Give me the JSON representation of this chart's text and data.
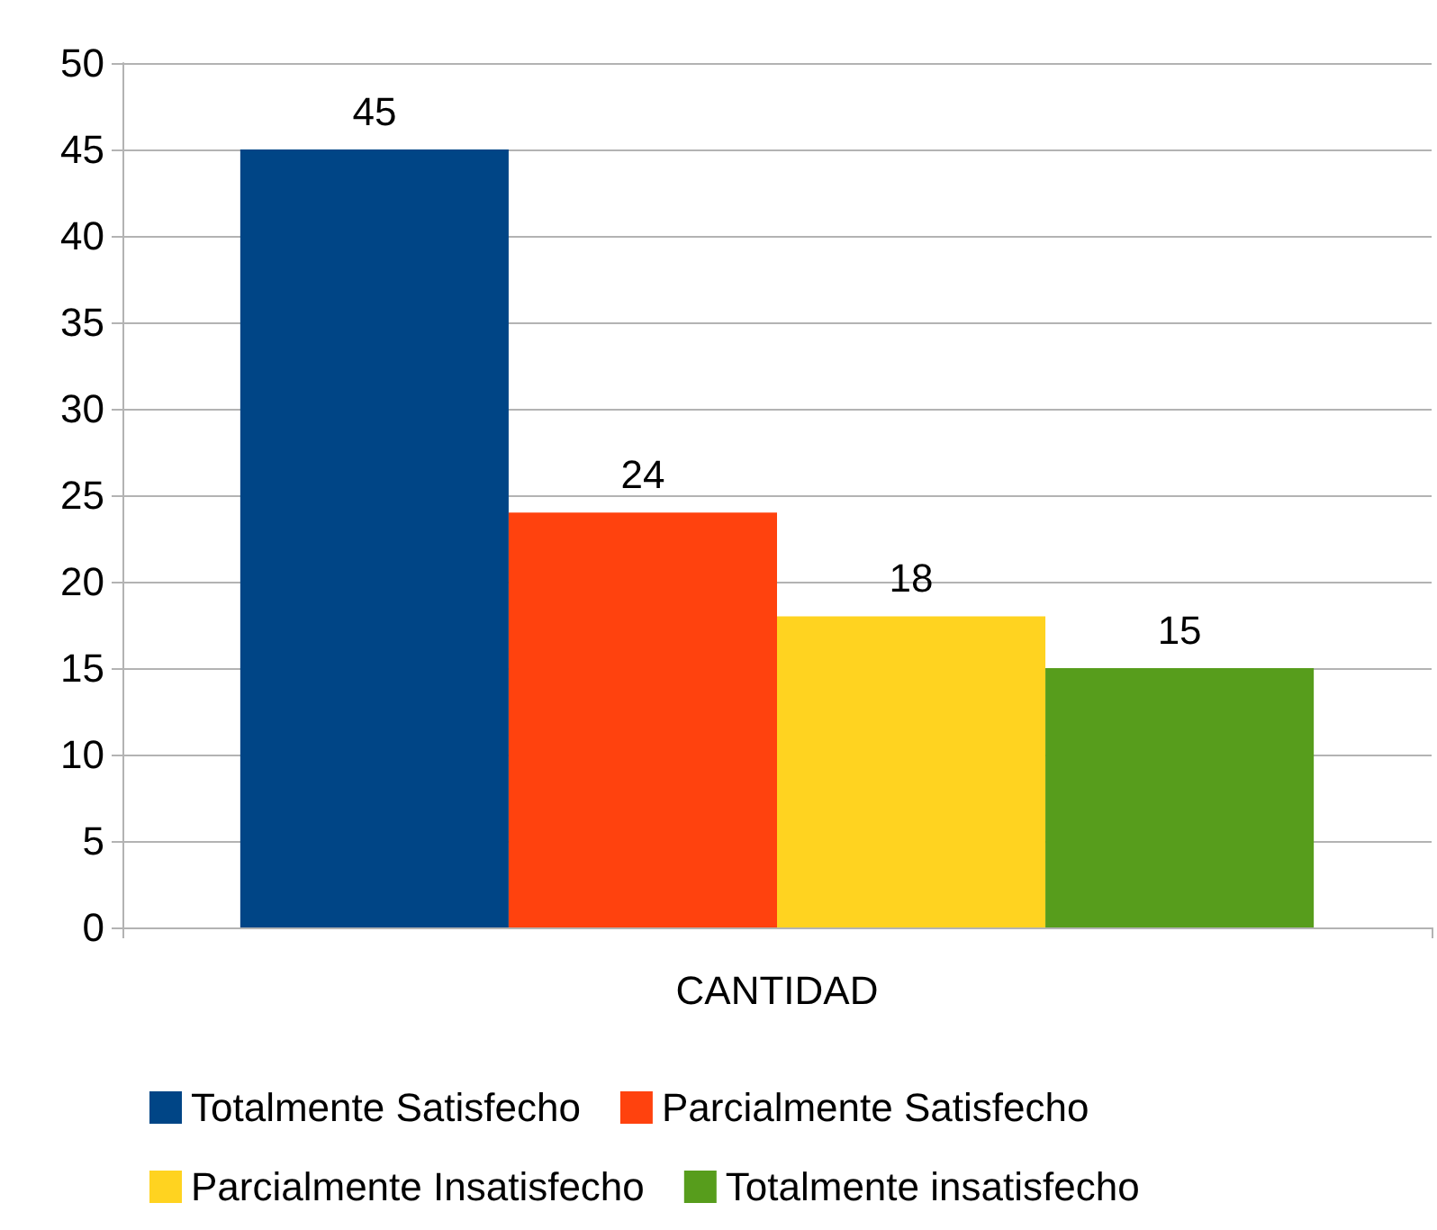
{
  "chart_data": {
    "type": "bar",
    "categories": [
      "CANTIDAD"
    ],
    "series": [
      {
        "name": "Totalmente Satisfecho",
        "color": "#004586",
        "values": [
          45
        ]
      },
      {
        "name": "Parcialmente Satisfecho",
        "color": "#ff420e",
        "values": [
          24
        ]
      },
      {
        "name": "Parcialmente Insatisfecho",
        "color": "#ffd320",
        "values": [
          18
        ]
      },
      {
        "name": "Totalmente insatisfecho",
        "color": "#579d1c",
        "values": [
          15
        ]
      }
    ],
    "ylim": [
      0,
      50
    ],
    "yticks": [
      0,
      5,
      10,
      15,
      20,
      25,
      30,
      35,
      40,
      45,
      50
    ],
    "grid": "y",
    "legend": "bottom",
    "data_labels": true
  }
}
